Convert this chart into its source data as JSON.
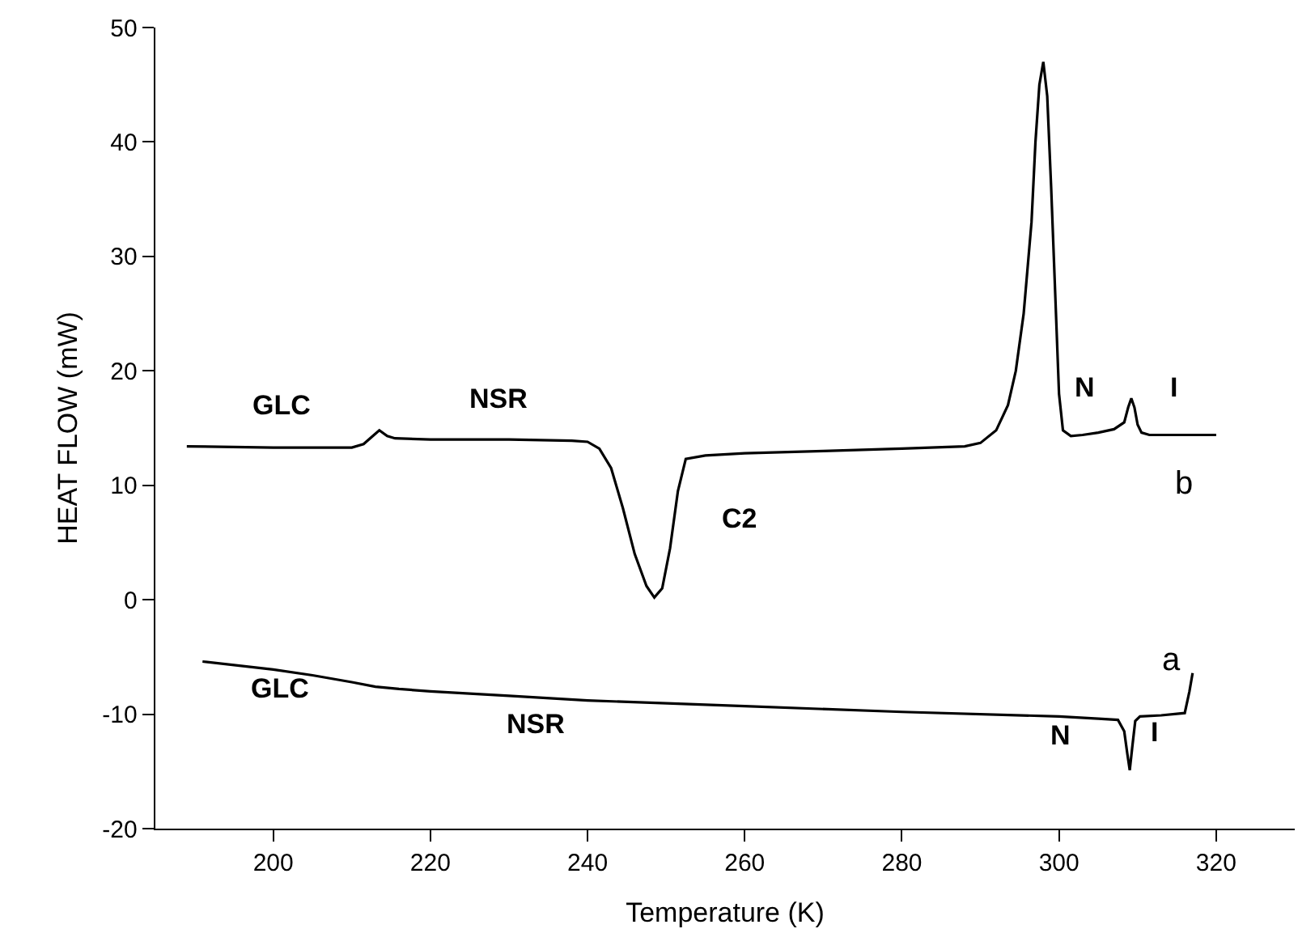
{
  "chart_data": {
    "type": "line",
    "xlabel": "Temperature (K)",
    "ylabel": "HEAT FLOW (mW)",
    "xlim": [
      185,
      330
    ],
    "xticks": [
      200,
      220,
      240,
      260,
      280,
      300,
      320
    ],
    "ylim": [
      -20,
      50
    ],
    "yticks": [
      -20,
      -10,
      0,
      10,
      20,
      30,
      40,
      50
    ],
    "grid": false,
    "legend": false,
    "marker": "none",
    "line_style": "solid",
    "series": [
      {
        "name": "b",
        "color": "#000000",
        "x": [
          189,
          200,
          210,
          211.5,
          212.5,
          213.5,
          214.5,
          215.5,
          220,
          230,
          238,
          240,
          241.5,
          243,
          244.5,
          246,
          247.5,
          248.5,
          249.5,
          250.5,
          251.5,
          252.5,
          255,
          260,
          270,
          280,
          288,
          290,
          292,
          293.5,
          294.5,
          295.5,
          296.5,
          297,
          297.5,
          298,
          298.5,
          299,
          299.5,
          300,
          300.5,
          301.5,
          303,
          305,
          307,
          308.3,
          308.8,
          309.2,
          309.6,
          310,
          310.5,
          311.5,
          315,
          320
        ],
        "values": [
          13.4,
          13.3,
          13.3,
          13.6,
          14.2,
          14.8,
          14.3,
          14.1,
          14.0,
          14.0,
          13.9,
          13.8,
          13.2,
          11.5,
          8.0,
          4.0,
          1.2,
          0.2,
          1.0,
          4.5,
          9.5,
          12.3,
          12.6,
          12.8,
          13.0,
          13.2,
          13.4,
          13.7,
          14.8,
          17.0,
          20.0,
          25.0,
          33.0,
          40.0,
          45.0,
          47.0,
          44.0,
          36.0,
          27.0,
          18.0,
          14.8,
          14.3,
          14.4,
          14.6,
          14.9,
          15.5,
          16.8,
          17.6,
          16.8,
          15.3,
          14.6,
          14.4,
          14.4,
          14.4
        ]
      },
      {
        "name": "a",
        "color": "#000000",
        "x": [
          191,
          200,
          205,
          210,
          213,
          216,
          220,
          230,
          240,
          260,
          280,
          300,
          305,
          307.5,
          308.3,
          308.7,
          309.0,
          309.3,
          309.7,
          310.3,
          313,
          316,
          316.6,
          317
        ],
        "values": [
          -5.4,
          -6.1,
          -6.6,
          -7.2,
          -7.6,
          -7.8,
          -8.0,
          -8.4,
          -8.8,
          -9.3,
          -9.8,
          -10.2,
          -10.4,
          -10.5,
          -11.5,
          -13.5,
          -14.9,
          -13.0,
          -10.6,
          -10.2,
          -10.1,
          -9.9,
          -8.0,
          -6.4
        ]
      }
    ],
    "annotations": [
      "GLC",
      "NSR",
      "C2",
      "N",
      "I",
      "GLC",
      "NSR",
      "N",
      "I"
    ]
  }
}
